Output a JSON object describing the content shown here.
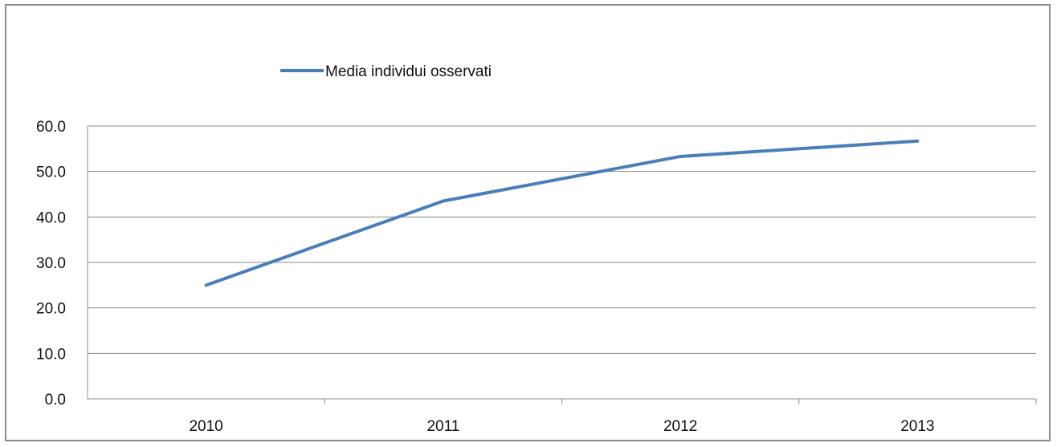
{
  "chart_data": {
    "type": "line",
    "categories": [
      "2010",
      "2011",
      "2012",
      "2013"
    ],
    "series": [
      {
        "name": "Media individui osservati",
        "values": [
          25.0,
          43.5,
          53.3,
          56.7
        ],
        "color": "#4a7ebb"
      }
    ],
    "y_ticks": [
      "0.0",
      "10.0",
      "20.0",
      "30.0",
      "40.0",
      "50.0",
      "60.0"
    ],
    "ylim": [
      0,
      60
    ],
    "grid": true,
    "legend_position": "top-left"
  }
}
